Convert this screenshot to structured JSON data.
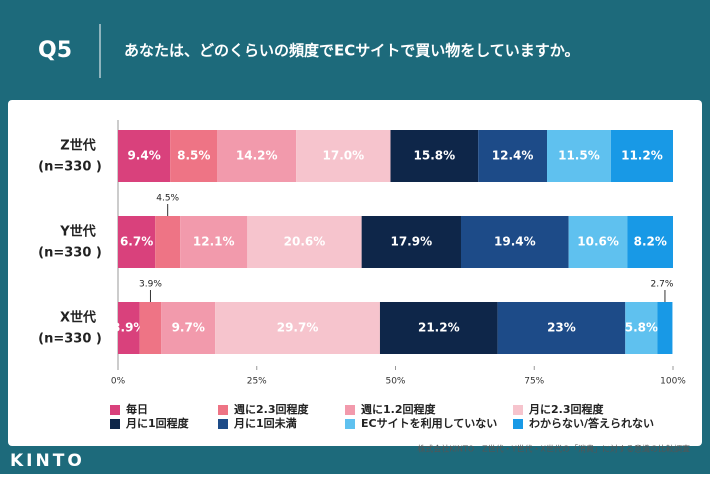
{
  "page": {
    "question": "Q5",
    "logo": "KINTO",
    "source": "株式会社KINTO　Z世代・Y世代・X世代の「消費」に対する意識の比較調査"
  },
  "chart_data": {
    "type": "stacked-bar-horizontal",
    "title": "あなたは、どのくらいの頻度でECサイトで買い物をしていますか。",
    "categories": [
      "Z世代",
      "Y世代",
      "X世代"
    ],
    "category_sublabels": [
      "(n=330 )",
      "(n=330 )",
      "(n=330 )"
    ],
    "xlim": [
      0,
      100
    ],
    "xticks": [
      {
        "value": 0,
        "label": "0%"
      },
      {
        "value": 25,
        "label": "25%"
      },
      {
        "value": 50,
        "label": "50%"
      },
      {
        "value": 75,
        "label": "75%"
      },
      {
        "value": 100,
        "label": "100%"
      }
    ],
    "grid": false,
    "series": [
      {
        "name": "毎日",
        "color": "#d9417c",
        "values": [
          9.4,
          6.7,
          3.9
        ],
        "value_labels": [
          "9.4%",
          "6.7%",
          "3.9%"
        ]
      },
      {
        "name": "週に2.3回程度",
        "color": "#ee7485",
        "values": [
          8.5,
          4.5,
          3.9
        ],
        "value_labels": [
          "8.5%",
          "4.5%",
          "3.9%"
        ]
      },
      {
        "name": "週に1.2回程度",
        "color": "#f29aac",
        "values": [
          14.2,
          12.1,
          9.7
        ],
        "value_labels": [
          "14.2%",
          "12.1%",
          "9.7%"
        ]
      },
      {
        "name": "月に2.3回程度",
        "color": "#f6c4cd",
        "values": [
          17.0,
          20.6,
          29.7
        ],
        "value_labels": [
          "17.0%",
          "20.6%",
          "29.7%"
        ]
      },
      {
        "name": "月に1回程度",
        "color": "#0e2649",
        "values": [
          15.8,
          17.9,
          21.2
        ],
        "value_labels": [
          "15.8%",
          "17.9%",
          "21.2%"
        ]
      },
      {
        "name": "月に1回未満",
        "color": "#1d4b88",
        "values": [
          12.4,
          19.4,
          23
        ],
        "value_labels": [
          "12.4%",
          "19.4%",
          "23%"
        ]
      },
      {
        "name": "ECサイトを利用していない",
        "color": "#5fc1ef",
        "values": [
          11.5,
          10.6,
          5.8
        ],
        "value_labels": [
          "11.5%",
          "10.6%",
          "5.8%"
        ]
      },
      {
        "name": "わからない/答えられない",
        "color": "#1899e6",
        "values": [
          11.2,
          8.2,
          2.7
        ],
        "value_labels": [
          "11.2%",
          "8.2%",
          "2.7%"
        ]
      }
    ]
  }
}
